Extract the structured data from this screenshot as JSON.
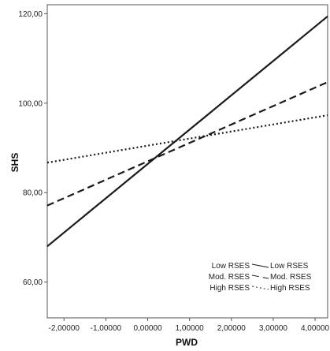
{
  "chart_data": {
    "type": "line",
    "xlabel": "PWD",
    "ylabel": "SHS",
    "xlim": [
      -2.4,
      4.3
    ],
    "ylim": [
      52,
      122
    ],
    "xticks": [
      -2.0,
      -1.0,
      0.0,
      1.0,
      2.0,
      3.0,
      4.0
    ],
    "xtick_labels": [
      "-2,00000",
      "-1,00000",
      "0,00000",
      "1,00000",
      "2,00000",
      "3,00000",
      "4,00000"
    ],
    "yticks": [
      60,
      80,
      100,
      120
    ],
    "ytick_labels": [
      "60,00",
      "80,00",
      "100,00",
      "120,00"
    ],
    "grid": false,
    "legend_position": "bottom-right",
    "series": [
      {
        "name": "Low RSES",
        "dash": "solid",
        "x": [
          -2.4,
          4.3
        ],
        "y": [
          68.0,
          119.4
        ]
      },
      {
        "name": "Mod. RSES",
        "dash": "dashed",
        "x": [
          -2.4,
          4.3
        ],
        "y": [
          77.1,
          104.7
        ]
      },
      {
        "name": "High RSES",
        "dash": "dotted",
        "x": [
          -2.4,
          4.3
        ],
        "y": [
          86.7,
          97.3
        ]
      }
    ],
    "legend": {
      "left_labels": [
        "Low RSES",
        "Mod. RSES",
        "High RSES"
      ],
      "right_labels": [
        "Low RSES",
        "Mod. RSES",
        "High RSES"
      ]
    }
  }
}
